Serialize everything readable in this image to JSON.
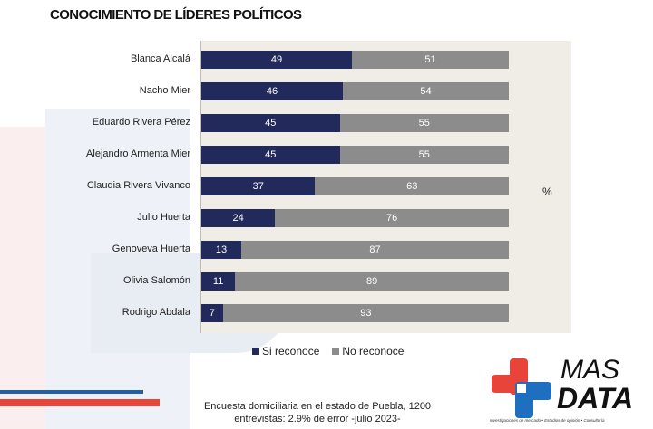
{
  "chart_data": {
    "type": "bar",
    "stacked": true,
    "orientation": "horizontal",
    "title": "CONOCIMIENTO DE LÍDERES POLÍTICOS",
    "unit_label": "%",
    "categories": [
      "Blanca Alcalá",
      "Nacho Mier",
      "Eduardo Rivera Pérez",
      "Alejandro Armenta Mier",
      "Claudia Rivera Vivanco",
      "Julio Huerta",
      "Genoveva Huerta",
      "Olivia Salomón",
      "Rodrigo Abdala"
    ],
    "series": [
      {
        "name": "Si reconoce",
        "color": "#222a5c",
        "values": [
          49,
          46,
          45,
          45,
          37,
          24,
          13,
          11,
          7
        ]
      },
      {
        "name": "No reconoce",
        "color": "#8c8c8c",
        "values": [
          51,
          54,
          55,
          55,
          63,
          76,
          87,
          89,
          93
        ]
      }
    ],
    "xlim": [
      0,
      100
    ],
    "legend_position": "bottom"
  },
  "footer": {
    "line1": "Encuesta domiciliaria en el estado de Puebla, 1200",
    "line2": "entrevistas: 2.9% de error -julio 2023-"
  },
  "logo": {
    "line1": "MAS",
    "line2": "DATA",
    "tagline": "Investigaciones de mercado • Estudios de opinión • Consultoría"
  }
}
